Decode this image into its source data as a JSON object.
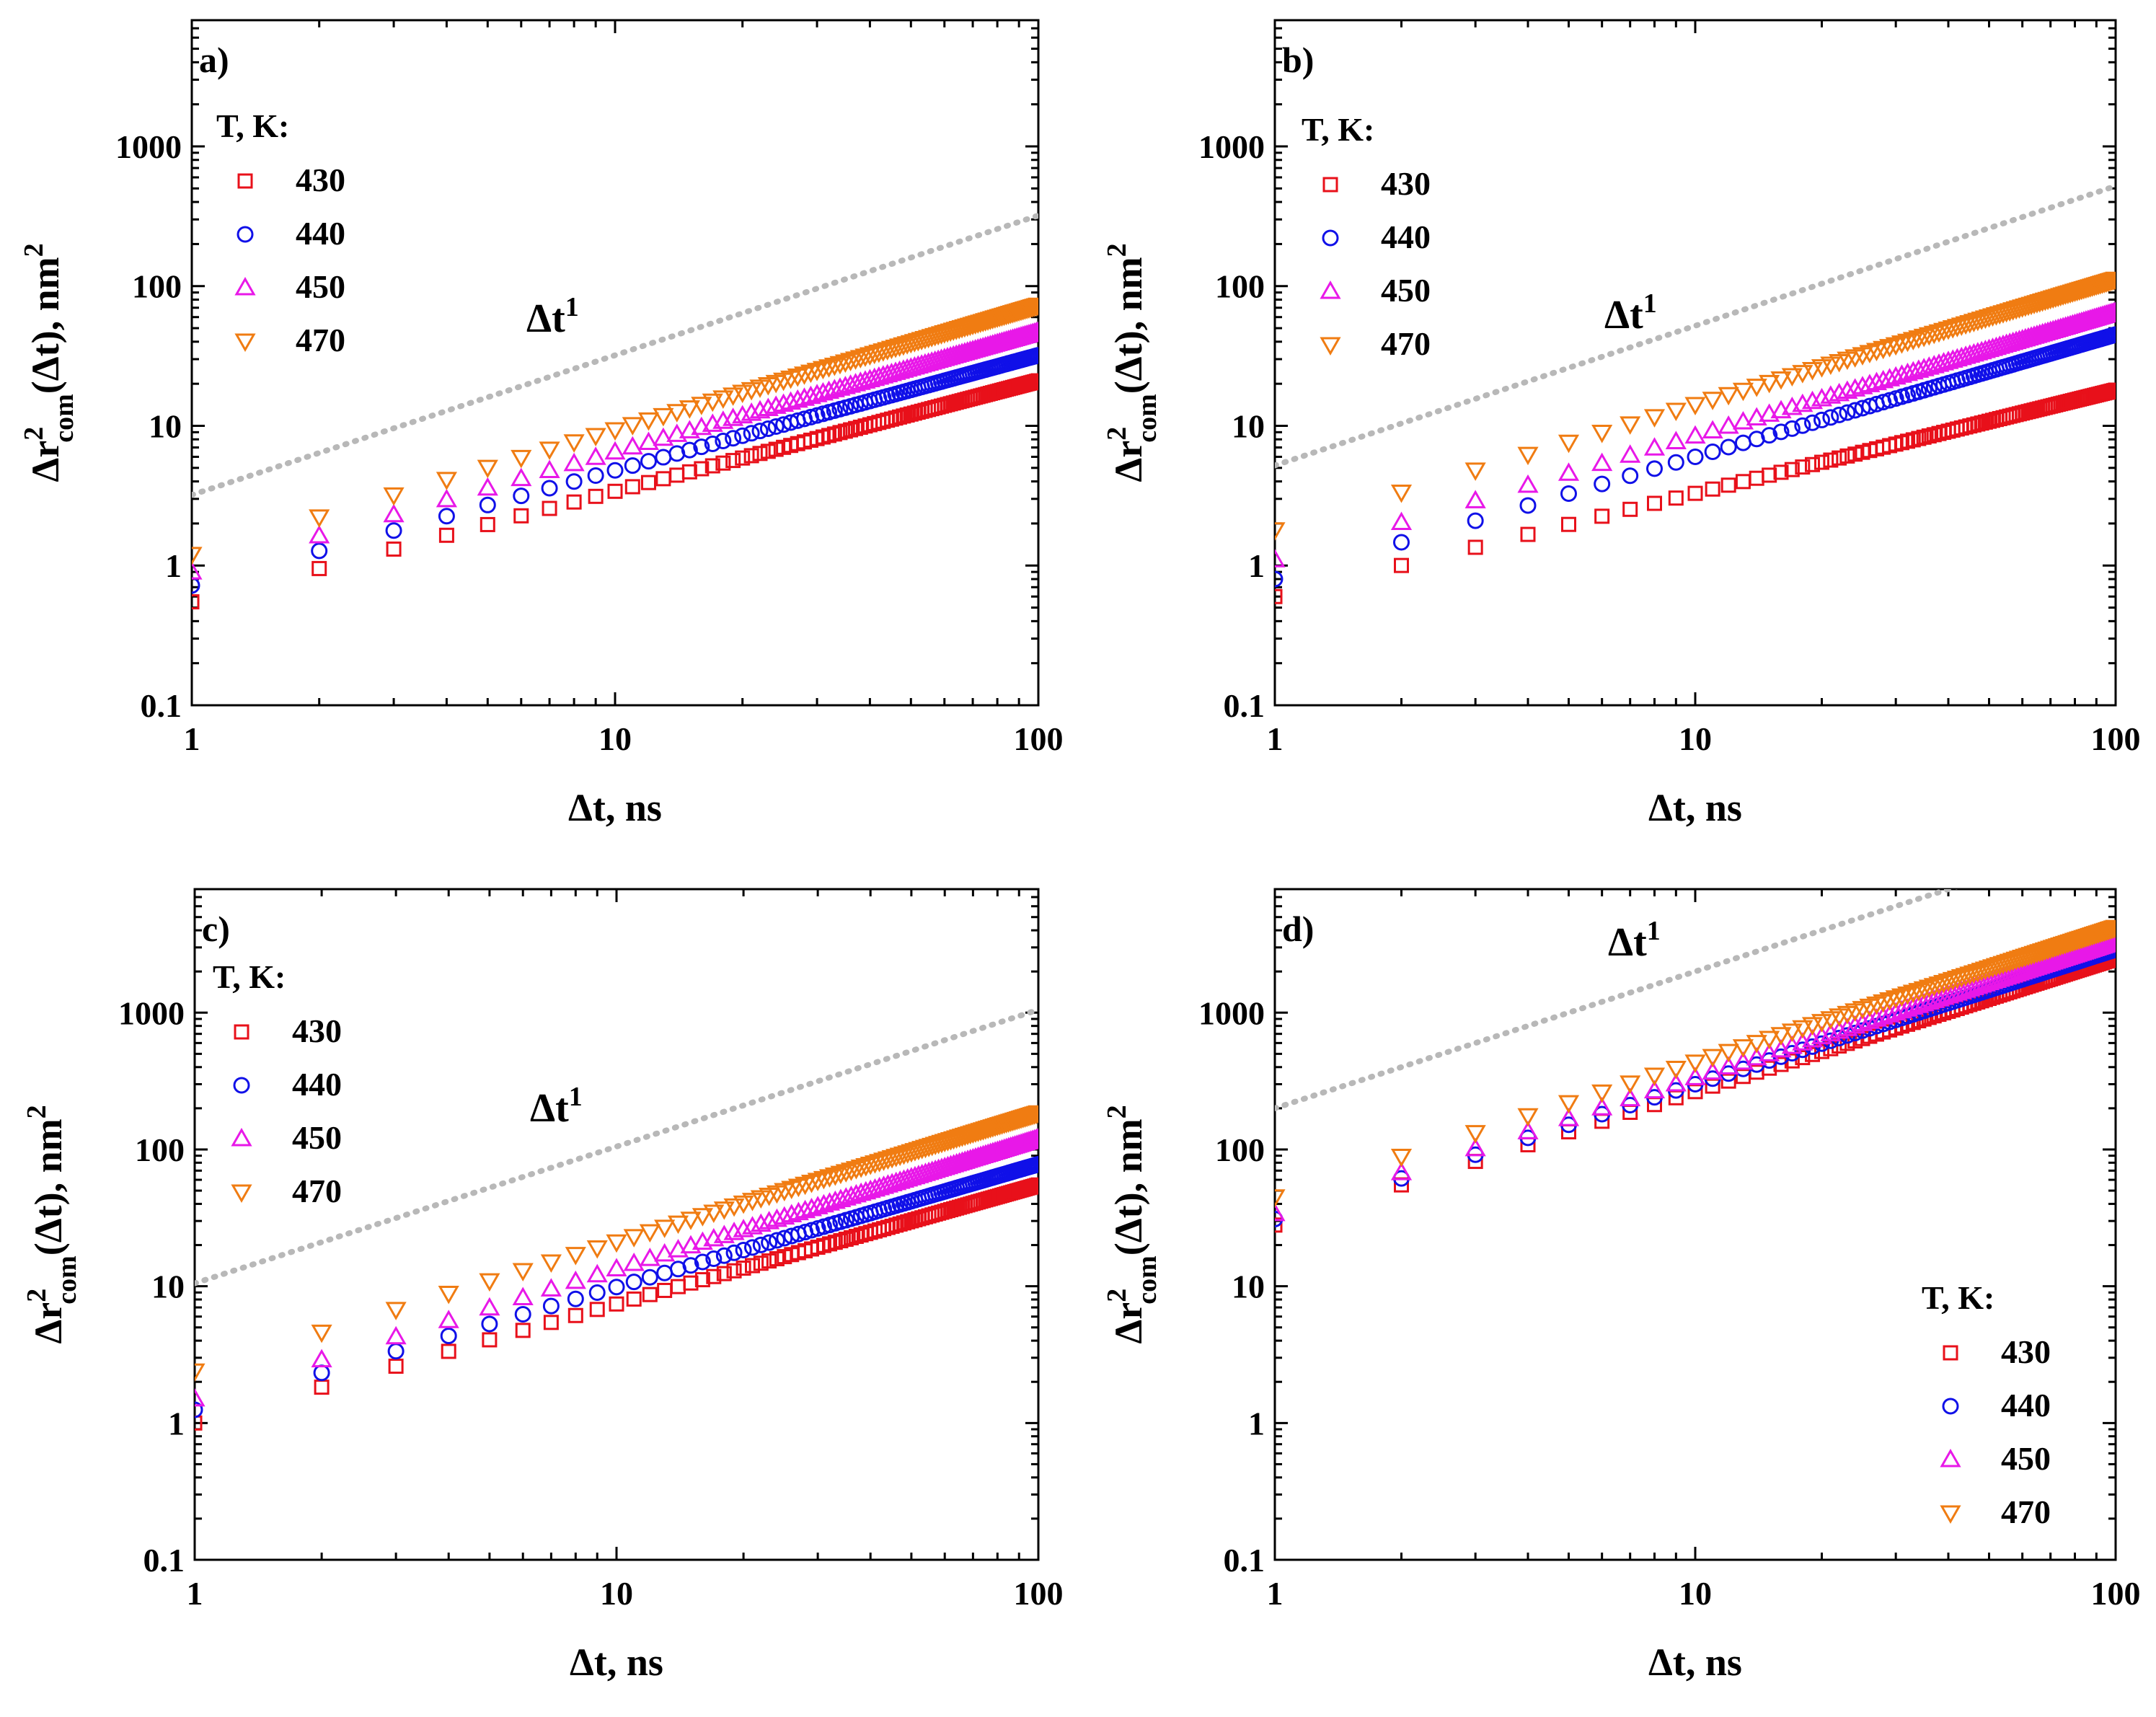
{
  "figure": {
    "x_axis_title": "Δt, ns",
    "y_axis_title": "Δr²com(Δt), nm²",
    "y_title_parts": {
      "delta": "Δr",
      "sup": "2",
      "sub": "com",
      "rest": "(Δt), nm",
      "sup2": "2"
    },
    "slope_label": "Δt",
    "slope_exponent": "1",
    "legend_title": "T, K:",
    "colors": {
      "T430": "#e8101a",
      "T440": "#1010e8",
      "T450": "#e818e8",
      "T470": "#f07c12",
      "guide": "#b8b8b8"
    }
  },
  "chart_data": [
    {
      "panel": "a)",
      "type": "scatter",
      "xscale": "log",
      "yscale": "log",
      "xlim": [
        1,
        100
      ],
      "ylim": [
        0.1,
        8000
      ],
      "xticks": [
        "1",
        "10",
        "100"
      ],
      "yticks": [
        "0.1",
        "1",
        "10",
        "100",
        "1000"
      ],
      "legend_position": "top-left",
      "guide": {
        "label": "Δt¹",
        "y_at_1": 3.2,
        "slope": 1
      },
      "series": [
        {
          "name": "430",
          "marker": "square",
          "y_at_1": 0.55,
          "y_at_100": 21
        },
        {
          "name": "440",
          "marker": "circle",
          "y_at_1": 0.72,
          "y_at_100": 32
        },
        {
          "name": "450",
          "marker": "triangle-up",
          "y_at_1": 0.9,
          "y_at_100": 47
        },
        {
          "name": "470",
          "marker": "triangle-down",
          "y_at_1": 1.2,
          "y_at_100": 73
        }
      ]
    },
    {
      "panel": "b)",
      "type": "scatter",
      "xscale": "log",
      "yscale": "log",
      "xlim": [
        1,
        100
      ],
      "ylim": [
        0.1,
        8000
      ],
      "xticks": [
        "1",
        "10",
        "100"
      ],
      "yticks": [
        "0.1",
        "1",
        "10",
        "100",
        "1000"
      ],
      "legend_position": "top-left",
      "guide": {
        "label": "Δt¹",
        "y_at_1": 5.2,
        "slope": 1
      },
      "series": [
        {
          "name": "430",
          "marker": "square",
          "y_at_1": 0.6,
          "y_at_100": 18
        },
        {
          "name": "440",
          "marker": "circle",
          "y_at_1": 0.8,
          "y_at_100": 45
        },
        {
          "name": "450",
          "marker": "triangle-up",
          "y_at_1": 1.1,
          "y_at_100": 65
        },
        {
          "name": "470",
          "marker": "triangle-down",
          "y_at_1": 1.8,
          "y_at_100": 112
        }
      ]
    },
    {
      "panel": "c)",
      "type": "scatter",
      "xscale": "log",
      "yscale": "log",
      "xlim": [
        1,
        100
      ],
      "ylim": [
        0.1,
        8000
      ],
      "xticks": [
        "1",
        "10",
        "100"
      ],
      "yticks": [
        "0.1",
        "1",
        "10",
        "100",
        "1000"
      ],
      "legend_position": "top-left",
      "guide": {
        "label": "Δt¹",
        "y_at_1": 10.5,
        "slope": 1
      },
      "series": [
        {
          "name": "430",
          "marker": "square",
          "y_at_1": 1.0,
          "y_at_100": 55
        },
        {
          "name": "440",
          "marker": "circle",
          "y_at_1": 1.25,
          "y_at_100": 78
        },
        {
          "name": "450",
          "marker": "triangle-up",
          "y_at_1": 1.5,
          "y_at_100": 120
        },
        {
          "name": "470",
          "marker": "triangle-down",
          "y_at_1": 2.4,
          "y_at_100": 185
        }
      ]
    },
    {
      "panel": "d)",
      "type": "scatter",
      "xscale": "log",
      "yscale": "log",
      "xlim": [
        1,
        100
      ],
      "ylim": [
        0.1,
        8000
      ],
      "xticks": [
        "1",
        "10",
        "100"
      ],
      "yticks": [
        "0.1",
        "1",
        "10",
        "100",
        "1000"
      ],
      "legend_position": "bottom-right",
      "guide": {
        "label": "Δt¹",
        "y_at_1": 200,
        "slope": 1
      },
      "series": [
        {
          "name": "430",
          "marker": "square",
          "y_at_1": 28,
          "y_at_100": 2500
        },
        {
          "name": "440",
          "marker": "circle",
          "y_at_1": 31,
          "y_at_100": 2900
        },
        {
          "name": "450",
          "marker": "triangle-up",
          "y_at_1": 34,
          "y_at_100": 3300
        },
        {
          "name": "470",
          "marker": "triangle-down",
          "y_at_1": 45,
          "y_at_100": 4200
        }
      ]
    }
  ]
}
